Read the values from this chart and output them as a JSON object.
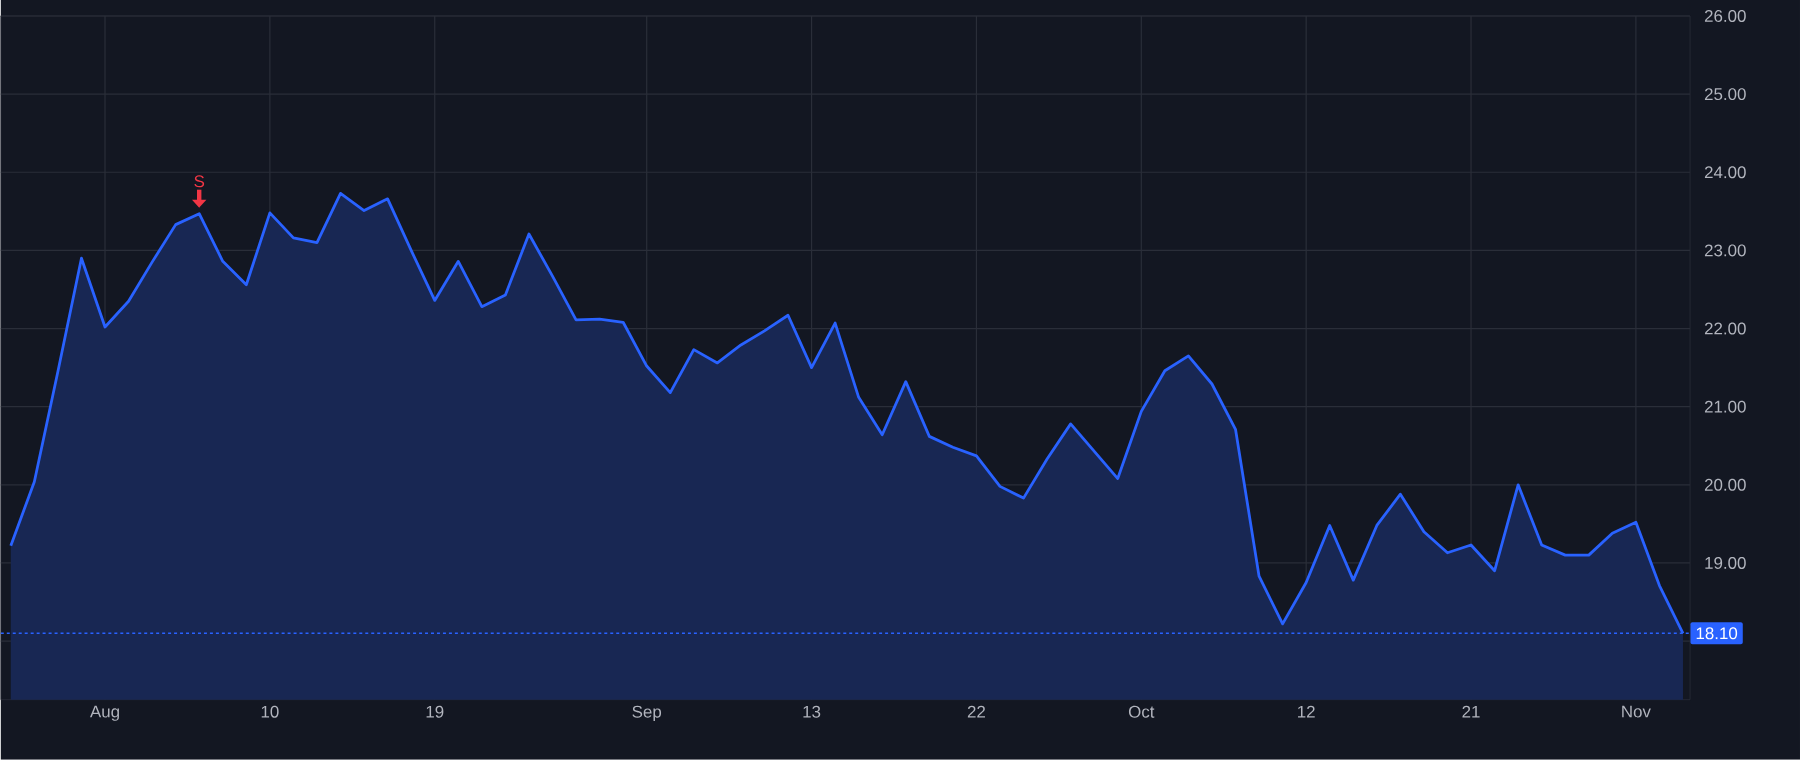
{
  "chart_data": {
    "type": "area",
    "categories": [
      null,
      null,
      null,
      null,
      "Aug",
      null,
      null,
      null,
      null,
      null,
      null,
      "10",
      null,
      null,
      null,
      null,
      null,
      null,
      "19",
      null,
      null,
      null,
      null,
      null,
      null,
      null,
      null,
      "Sep",
      null,
      null,
      null,
      null,
      null,
      null,
      "13",
      null,
      null,
      null,
      null,
      null,
      null,
      "22",
      null,
      null,
      null,
      null,
      null,
      null,
      "Oct",
      null,
      null,
      null,
      null,
      null,
      null,
      "12",
      null,
      null,
      null,
      null,
      null,
      null,
      "21",
      null,
      null,
      null,
      null,
      null,
      null,
      "Nov",
      null,
      null
    ],
    "series": [
      {
        "color": "#2962ff",
        "values": [
          19.22,
          20.04,
          21.45,
          22.9,
          22.02,
          22.35,
          22.85,
          23.33,
          23.47,
          22.86,
          22.56,
          23.48,
          23.16,
          23.1,
          23.73,
          23.51,
          23.66,
          23.0,
          22.36,
          22.86,
          22.28,
          22.43,
          23.21,
          22.67,
          22.11,
          22.12,
          22.08,
          21.52,
          21.18,
          21.73,
          21.56,
          21.79,
          21.97,
          22.17,
          21.5,
          22.07,
          21.12,
          20.64,
          21.32,
          20.62,
          20.48,
          20.37,
          19.98,
          19.83,
          20.33,
          20.78,
          20.43,
          20.08,
          20.94,
          21.46,
          21.65,
          21.29,
          20.71,
          18.83,
          18.22,
          18.75,
          19.48,
          18.78,
          19.48,
          19.88,
          19.4,
          19.13,
          19.23,
          18.9,
          20.0,
          19.23,
          19.1,
          19.1,
          19.38,
          19.52,
          18.71,
          18.1
        ]
      }
    ],
    "ylim": [
      17.25,
      26
    ],
    "yticks": [
      {
        "value": 18,
        "label": null
      },
      {
        "value": 19,
        "label": "19.00"
      },
      {
        "value": 20,
        "label": "20.00"
      },
      {
        "value": 21,
        "label": "21.00"
      },
      {
        "value": 22,
        "label": "22.00"
      },
      {
        "value": 23,
        "label": "23.00"
      },
      {
        "value": 24,
        "label": "24.00"
      },
      {
        "value": 25,
        "label": "25.00"
      },
      {
        "value": 26,
        "label": "26.00"
      }
    ],
    "grid": true,
    "ref_lines": [
      {
        "axis": "y",
        "value": 18.1,
        "label": "18.10",
        "color": "#2962ff",
        "line_style": "dotted"
      }
    ],
    "annotations": [
      {
        "text": "S",
        "y": 23.47
      }
    ]
  }
}
